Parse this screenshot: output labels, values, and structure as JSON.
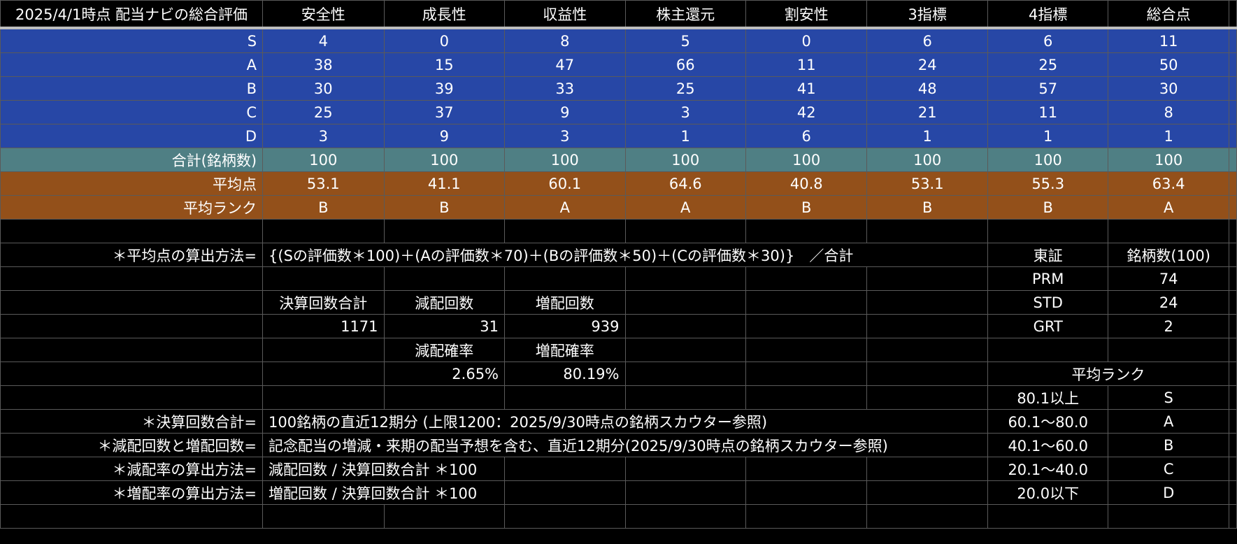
{
  "header": {
    "corner": "2025/4/1時点 配当ナビの総合評価",
    "columns": [
      "安全性",
      "成長性",
      "収益性",
      "株主還元",
      "割安性",
      "3指標",
      "4指標",
      "総合点"
    ]
  },
  "rank_rows": [
    {
      "label": "S",
      "values": [
        "4",
        "0",
        "8",
        "5",
        "0",
        "6",
        "6",
        "11"
      ]
    },
    {
      "label": "A",
      "values": [
        "38",
        "15",
        "47",
        "66",
        "11",
        "24",
        "25",
        "50"
      ]
    },
    {
      "label": "B",
      "values": [
        "30",
        "39",
        "33",
        "25",
        "41",
        "48",
        "57",
        "30"
      ]
    },
    {
      "label": "C",
      "values": [
        "25",
        "37",
        "9",
        "3",
        "42",
        "21",
        "11",
        "8"
      ]
    },
    {
      "label": "D",
      "values": [
        "3",
        "9",
        "3",
        "1",
        "6",
        "1",
        "1",
        "1"
      ]
    }
  ],
  "total_row": {
    "label": "合計(銘柄数)",
    "values": [
      "100",
      "100",
      "100",
      "100",
      "100",
      "100",
      "100",
      "100"
    ]
  },
  "avg_point_row": {
    "label": "平均点",
    "values": [
      "53.1",
      "41.1",
      "60.1",
      "64.6",
      "40.8",
      "53.1",
      "55.3",
      "63.4"
    ]
  },
  "avg_rank_row": {
    "label": "平均ランク",
    "values": [
      "B",
      "B",
      "A",
      "A",
      "B",
      "B",
      "B",
      "A"
    ]
  },
  "formula": {
    "label": "＊平均点の算出方法=",
    "text": "{(Sの評価数＊100)＋(Aの評価数＊70)＋(Bの評価数＊50)＋(Cの評価数＊30)}　／合計"
  },
  "market": {
    "header": [
      "東証",
      "銘柄数(100)"
    ],
    "rows": [
      [
        "PRM",
        "74"
      ],
      [
        "STD",
        "24"
      ],
      [
        "GRT",
        "2"
      ]
    ]
  },
  "dividend_counts": {
    "headers": [
      "決算回数合計",
      "減配回数",
      "増配回数"
    ],
    "values": [
      "1171",
      "31",
      "939"
    ],
    "rate_headers": [
      "減配確率",
      "増配確率"
    ],
    "rate_values": [
      "2.65%",
      "80.19%"
    ]
  },
  "rank_legend": {
    "title": "平均ランク",
    "rows": [
      [
        "80.1以上",
        "S"
      ],
      [
        "60.1〜80.0",
        "A"
      ],
      [
        "40.1〜60.0",
        "B"
      ],
      [
        "20.1〜40.0",
        "C"
      ],
      [
        "20.0以下",
        "D"
      ]
    ]
  },
  "notes": [
    {
      "label": "＊決算回数合計=",
      "text": "100銘柄の直近12期分 (上限1200：2025/9/30時点の銘柄スカウター参照)"
    },
    {
      "label": "＊減配回数と増配回数=",
      "text": "記念配当の増減・来期の配当予想を含む、直近12期分(2025/9/30時点の銘柄スカウター参照)"
    },
    {
      "label": "＊減配率の算出方法=",
      "text": "減配回数 / 決算回数合計 ＊100"
    },
    {
      "label": "＊増配率の算出方法=",
      "text": "増配回数 / 決算回数合計 ＊100"
    }
  ],
  "colors": {
    "blue": "#2747a6",
    "teal": "#4f7f84",
    "orange": "#93501a",
    "background": "#000000"
  }
}
